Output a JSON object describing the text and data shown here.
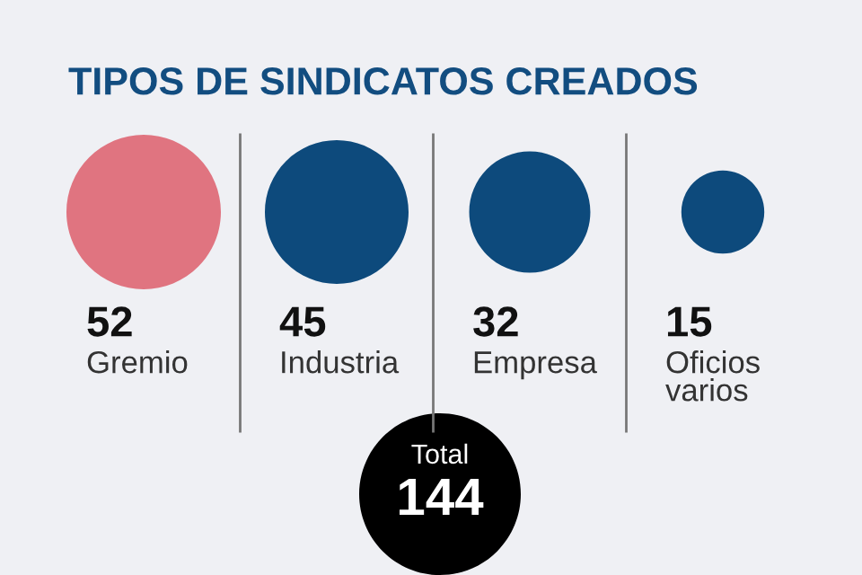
{
  "chart_data": {
    "type": "other",
    "title": "TIPOS DE SINDICATOS CREADOS",
    "categories": [
      "Gremio",
      "Industria",
      "Empresa",
      "Oficios varios"
    ],
    "values": [
      52,
      45,
      32,
      15
    ],
    "colors": [
      "#e07480",
      "#0d4a7c",
      "#0d4a7c",
      "#0d4a7c"
    ],
    "data_labels": true,
    "annotations": [
      "Total",
      "144"
    ]
  }
}
